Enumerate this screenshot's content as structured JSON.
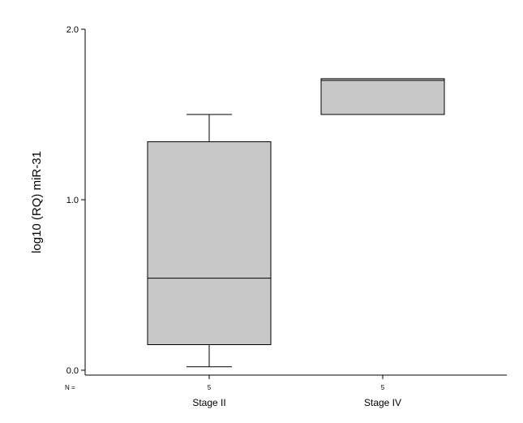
{
  "chart_data": {
    "type": "box",
    "ylabel": "log10 (RQ) miR-31",
    "xlabel": "",
    "ylim": [
      0,
      2.0
    ],
    "y_ticks": [
      {
        "value": 0.0,
        "label": "0.0"
      },
      {
        "value": 1.0,
        "label": "1.0"
      },
      {
        "value": 2.0,
        "label": "2.0"
      }
    ],
    "n_label": "N =",
    "grid": false,
    "box_color": "#c8c8c8",
    "categories": [
      "Stage II",
      "Stage IV"
    ],
    "n": [
      "5",
      "5"
    ],
    "boxes": [
      {
        "whisker_low": 0.02,
        "q1": 0.15,
        "median": 0.54,
        "q3": 1.34,
        "whisker_high": 1.5
      },
      {
        "whisker_low": 1.5,
        "q1": 1.5,
        "median": 1.7,
        "q3": 1.71,
        "whisker_high": 1.71
      }
    ]
  }
}
